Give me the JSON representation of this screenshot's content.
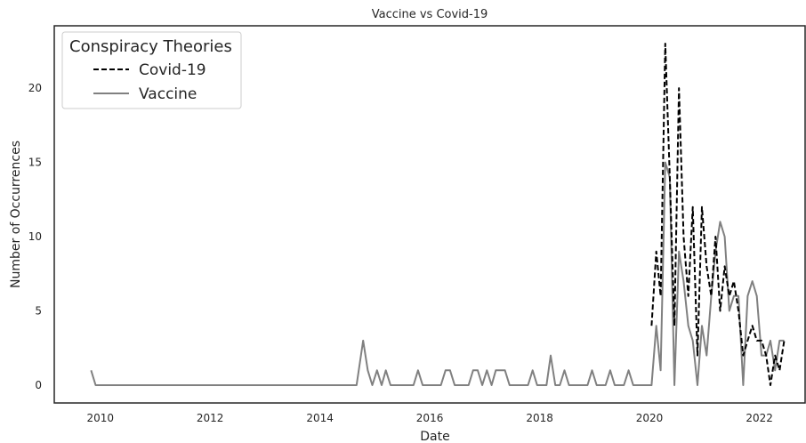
{
  "chart_data": {
    "type": "line",
    "title": "Vaccine vs Covid-19",
    "xlabel": "Date",
    "ylabel": "Number of Occurrences",
    "xlim": [
      "2009-03-01",
      "2022-11-01"
    ],
    "ylim": [
      -1.2,
      24.2
    ],
    "xticks": [
      "2010",
      "2012",
      "2014",
      "2016",
      "2018",
      "2020",
      "2022"
    ],
    "yticks": [
      "0",
      "5",
      "10",
      "15",
      "20"
    ],
    "grid": false,
    "legend": {
      "title": "Conspiracy Theories",
      "placement": "top-left"
    },
    "series": [
      {
        "name": "Covid-19",
        "color": "#000000",
        "style": "dashed",
        "points": [
          [
            "2020-01-15",
            4
          ],
          [
            "2020-02-15",
            9
          ],
          [
            "2020-03-15",
            6
          ],
          [
            "2020-04-15",
            23
          ],
          [
            "2020-05-15",
            14
          ],
          [
            "2020-06-15",
            4
          ],
          [
            "2020-07-15",
            20
          ],
          [
            "2020-08-15",
            10
          ],
          [
            "2020-09-15",
            6
          ],
          [
            "2020-10-15",
            12
          ],
          [
            "2020-11-15",
            2
          ],
          [
            "2020-12-15",
            12
          ],
          [
            "2021-01-15",
            8
          ],
          [
            "2021-02-15",
            6
          ],
          [
            "2021-03-15",
            10
          ],
          [
            "2021-04-15",
            5
          ],
          [
            "2021-05-15",
            8
          ],
          [
            "2021-06-15",
            6
          ],
          [
            "2021-07-15",
            7
          ],
          [
            "2021-08-15",
            5
          ],
          [
            "2021-09-15",
            2
          ],
          [
            "2021-10-15",
            3
          ],
          [
            "2021-11-15",
            4
          ],
          [
            "2021-12-15",
            3
          ],
          [
            "2022-01-15",
            3
          ],
          [
            "2022-02-15",
            2
          ],
          [
            "2022-03-15",
            0
          ],
          [
            "2022-04-15",
            2
          ],
          [
            "2022-05-15",
            1
          ],
          [
            "2022-06-15",
            3
          ]
        ]
      },
      {
        "name": "Vaccine",
        "color": "#808080",
        "style": "solid",
        "points": [
          [
            "2009-11-01",
            1
          ],
          [
            "2009-12-01",
            0
          ],
          [
            "2010-06-01",
            0
          ],
          [
            "2011-06-01",
            0
          ],
          [
            "2012-06-01",
            0
          ],
          [
            "2013-06-01",
            0
          ],
          [
            "2014-06-01",
            0
          ],
          [
            "2014-09-01",
            0
          ],
          [
            "2014-10-15",
            3
          ],
          [
            "2014-11-15",
            1
          ],
          [
            "2014-12-15",
            0
          ],
          [
            "2015-01-15",
            1
          ],
          [
            "2015-02-15",
            0
          ],
          [
            "2015-03-15",
            1
          ],
          [
            "2015-04-15",
            0
          ],
          [
            "2015-06-01",
            0
          ],
          [
            "2015-09-15",
            0
          ],
          [
            "2015-10-15",
            1
          ],
          [
            "2015-11-15",
            0
          ],
          [
            "2016-03-15",
            0
          ],
          [
            "2016-04-15",
            1
          ],
          [
            "2016-05-15",
            1
          ],
          [
            "2016-06-15",
            0
          ],
          [
            "2016-09-15",
            0
          ],
          [
            "2016-10-15",
            1
          ],
          [
            "2016-11-15",
            1
          ],
          [
            "2016-12-15",
            0
          ],
          [
            "2017-01-15",
            1
          ],
          [
            "2017-02-15",
            0
          ],
          [
            "2017-03-15",
            1
          ],
          [
            "2017-05-15",
            1
          ],
          [
            "2017-06-15",
            0
          ],
          [
            "2017-10-15",
            0
          ],
          [
            "2017-11-15",
            1
          ],
          [
            "2017-12-15",
            0
          ],
          [
            "2018-02-15",
            0
          ],
          [
            "2018-03-15",
            2
          ],
          [
            "2018-04-15",
            0
          ],
          [
            "2018-05-15",
            0
          ],
          [
            "2018-06-15",
            1
          ],
          [
            "2018-07-15",
            0
          ],
          [
            "2018-11-15",
            0
          ],
          [
            "2018-12-15",
            1
          ],
          [
            "2019-01-15",
            0
          ],
          [
            "2019-03-15",
            0
          ],
          [
            "2019-04-15",
            1
          ],
          [
            "2019-05-15",
            0
          ],
          [
            "2019-07-15",
            0
          ],
          [
            "2019-08-15",
            1
          ],
          [
            "2019-09-15",
            0
          ],
          [
            "2020-01-15",
            0
          ],
          [
            "2020-02-15",
            4
          ],
          [
            "2020-03-15",
            1
          ],
          [
            "2020-04-15",
            15
          ],
          [
            "2020-05-15",
            14
          ],
          [
            "2020-06-15",
            0
          ],
          [
            "2020-07-15",
            9
          ],
          [
            "2020-08-15",
            7
          ],
          [
            "2020-09-15",
            4
          ],
          [
            "2020-10-15",
            3
          ],
          [
            "2020-11-15",
            0
          ],
          [
            "2020-12-15",
            4
          ],
          [
            "2021-01-15",
            2
          ],
          [
            "2021-02-15",
            6
          ],
          [
            "2021-03-15",
            9
          ],
          [
            "2021-04-15",
            11
          ],
          [
            "2021-05-15",
            10
          ],
          [
            "2021-06-15",
            5
          ],
          [
            "2021-07-15",
            6
          ],
          [
            "2021-08-15",
            6
          ],
          [
            "2021-09-15",
            0
          ],
          [
            "2021-10-15",
            6
          ],
          [
            "2021-11-15",
            7
          ],
          [
            "2021-12-15",
            6
          ],
          [
            "2022-01-15",
            2
          ],
          [
            "2022-02-15",
            2
          ],
          [
            "2022-03-15",
            3
          ],
          [
            "2022-04-15",
            1
          ],
          [
            "2022-05-15",
            3
          ],
          [
            "2022-06-15",
            3
          ]
        ]
      }
    ]
  }
}
